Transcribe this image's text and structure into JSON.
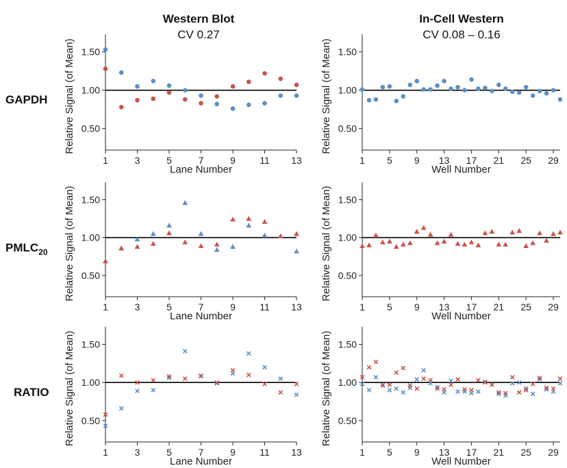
{
  "colors": {
    "blue": "#5b8fc7",
    "red": "#c8554a",
    "axis": "#222222",
    "reference": "#000000"
  },
  "columns": [
    {
      "title": "Western Blot",
      "subtitle": "CV 0.27"
    },
    {
      "title": "In-Cell Western",
      "subtitle": "CV 0.08 – 0.16"
    }
  ],
  "rows": [
    {
      "label": "GAPDH",
      "label_sub": ""
    },
    {
      "label": "PMLC",
      "label_sub": "20"
    },
    {
      "label": "RATIO",
      "label_sub": ""
    }
  ],
  "chart_data": [
    {
      "type": "scatter",
      "row": "GAPDH",
      "column": "Western Blot",
      "marker": "circle",
      "xlabel": "Lane Number",
      "ylabel": "Relative Signal (of Mean)",
      "xlim": [
        1,
        13
      ],
      "ylim": [
        0.22,
        1.73
      ],
      "xticks": [
        1,
        3,
        5,
        7,
        9,
        11,
        13
      ],
      "yticks": [
        0.5,
        1.0,
        1.5
      ],
      "ytick_labels": [
        "0.50",
        "1.00",
        "1.50"
      ],
      "reference_y": 1.0,
      "series": [
        {
          "color": "blue",
          "x": [
            1,
            2,
            3,
            4,
            5,
            6,
            7,
            8,
            9,
            10,
            11,
            12,
            13
          ],
          "y": [
            1.53,
            1.23,
            1.05,
            1.12,
            1.06,
            1.0,
            0.93,
            0.82,
            0.76,
            0.81,
            0.83,
            0.93,
            0.93
          ]
        },
        {
          "color": "red",
          "x": [
            1,
            2,
            3,
            4,
            5,
            6,
            7,
            8,
            9,
            10,
            11,
            12,
            13
          ],
          "y": [
            1.28,
            0.78,
            0.87,
            0.89,
            0.97,
            0.88,
            0.83,
            0.92,
            1.05,
            1.11,
            1.22,
            1.15,
            1.07
          ]
        }
      ]
    },
    {
      "type": "scatter",
      "row": "GAPDH",
      "column": "In-Cell Western",
      "marker": "circle",
      "xlabel": "Well Number",
      "ylabel": "Relative Signal (of Mean)",
      "xlim": [
        1,
        30
      ],
      "ylim": [
        0.22,
        1.73
      ],
      "xticks": [
        1,
        5,
        9,
        13,
        17,
        21,
        25,
        29
      ],
      "yticks": [
        0.5,
        1.0,
        1.5
      ],
      "ytick_labels": [
        "0.50",
        "1.00",
        "1.50"
      ],
      "reference_y": 1.0,
      "series": [
        {
          "color": "blue",
          "x": [
            1,
            2,
            3,
            4,
            5,
            6,
            7,
            8,
            9,
            10,
            11,
            12,
            13,
            14,
            15,
            16,
            17,
            18,
            19,
            20,
            21,
            22,
            23,
            24,
            25,
            26,
            27,
            28,
            29,
            30
          ],
          "y": [
            1.01,
            0.87,
            0.88,
            1.04,
            1.05,
            0.86,
            0.92,
            1.07,
            1.12,
            1.01,
            1.01,
            1.06,
            1.12,
            1.02,
            1.04,
            1.0,
            1.14,
            1.02,
            1.03,
            0.99,
            1.07,
            1.02,
            0.98,
            0.97,
            1.04,
            0.93,
            0.99,
            0.96,
            1.0,
            0.88
          ]
        }
      ]
    },
    {
      "type": "scatter",
      "row": "PMLC20",
      "column": "Western Blot",
      "marker": "triangle",
      "xlabel": "Lane Number",
      "ylabel": "Relative Signal (of Mean)",
      "xlim": [
        1,
        13
      ],
      "ylim": [
        0.22,
        1.73
      ],
      "xticks": [
        1,
        3,
        5,
        7,
        9,
        11,
        13
      ],
      "yticks": [
        0.5,
        1.0,
        1.5
      ],
      "ytick_labels": [
        "0.50",
        "1.00",
        "1.50"
      ],
      "reference_y": 1.0,
      "series": [
        {
          "color": "blue",
          "x": [
            1,
            2,
            3,
            4,
            5,
            6,
            7,
            8,
            9,
            10,
            11,
            12,
            13
          ],
          "y": [
            0.69,
            0.86,
            0.98,
            1.05,
            1.16,
            1.46,
            1.05,
            0.84,
            0.88,
            1.16,
            1.03,
            1.02,
            0.82
          ]
        },
        {
          "color": "red",
          "x": [
            1,
            2,
            3,
            4,
            5,
            6,
            7,
            8,
            9,
            10,
            11,
            12,
            13
          ],
          "y": [
            0.69,
            0.86,
            0.88,
            0.92,
            1.06,
            0.94,
            0.89,
            0.91,
            1.24,
            1.25,
            1.21,
            1.02,
            1.05
          ]
        }
      ]
    },
    {
      "type": "scatter",
      "row": "PMLC20",
      "column": "In-Cell Western",
      "marker": "triangle",
      "xlabel": "Well Number",
      "ylabel": "Relative Signal (of Mean)",
      "xlim": [
        1,
        30
      ],
      "ylim": [
        0.22,
        1.73
      ],
      "xticks": [
        1,
        5,
        9,
        13,
        17,
        21,
        25,
        29
      ],
      "yticks": [
        0.5,
        1.0,
        1.5
      ],
      "ytick_labels": [
        "0.50",
        "1.00",
        "1.50"
      ],
      "reference_y": 1.0,
      "series": [
        {
          "color": "red",
          "x": [
            1,
            2,
            3,
            4,
            5,
            6,
            7,
            8,
            9,
            10,
            11,
            12,
            13,
            14,
            15,
            16,
            17,
            18,
            19,
            20,
            21,
            22,
            23,
            24,
            25,
            26,
            27,
            28,
            29,
            30
          ],
          "y": [
            0.89,
            0.9,
            1.03,
            0.94,
            0.95,
            0.88,
            0.91,
            0.93,
            1.08,
            1.13,
            1.04,
            0.93,
            0.95,
            1.04,
            0.92,
            0.91,
            0.94,
            0.9,
            1.06,
            1.08,
            0.91,
            0.91,
            1.07,
            1.09,
            0.89,
            0.93,
            1.06,
            0.96,
            1.05,
            1.07
          ]
        }
      ]
    },
    {
      "type": "scatter",
      "row": "RATIO",
      "column": "Western Blot",
      "marker": "x",
      "xlabel": "Lane Number",
      "ylabel": "Relative Signal (of Mean)",
      "xlim": [
        1,
        13
      ],
      "ylim": [
        0.22,
        1.73
      ],
      "xticks": [
        1,
        3,
        5,
        7,
        9,
        11,
        13
      ],
      "yticks": [
        0.5,
        1.0,
        1.5
      ],
      "ytick_labels": [
        "0.50",
        "1.00",
        "1.50"
      ],
      "reference_y": 1.0,
      "series": [
        {
          "color": "blue",
          "x": [
            1,
            2,
            3,
            4,
            5,
            6,
            7,
            8,
            9,
            10,
            11,
            12,
            13
          ],
          "y": [
            0.43,
            0.66,
            0.89,
            0.9,
            1.06,
            1.41,
            1.08,
            0.99,
            1.12,
            1.38,
            1.2,
            1.05,
            0.84
          ]
        },
        {
          "color": "red",
          "x": [
            1,
            2,
            3,
            4,
            5,
            6,
            7,
            8,
            9,
            10,
            11,
            12,
            13
          ],
          "y": [
            0.58,
            1.09,
            1.0,
            1.03,
            1.08,
            1.05,
            1.09,
            1.0,
            1.16,
            1.1,
            0.98,
            0.87,
            0.98
          ]
        }
      ]
    },
    {
      "type": "scatter",
      "row": "RATIO",
      "column": "In-Cell Western",
      "marker": "x",
      "xlabel": "Well Number",
      "ylabel": "Relative Signal (of Mean)",
      "xlim": [
        1,
        30
      ],
      "ylim": [
        0.22,
        1.73
      ],
      "xticks": [
        1,
        5,
        9,
        13,
        17,
        21,
        25,
        29
      ],
      "yticks": [
        0.5,
        1.0,
        1.5
      ],
      "ytick_labels": [
        "0.50",
        "1.00",
        "1.50"
      ],
      "reference_y": 1.0,
      "series": [
        {
          "color": "blue",
          "x": [
            1,
            2,
            3,
            4,
            5,
            6,
            7,
            8,
            9,
            10,
            11,
            12,
            13,
            14,
            15,
            16,
            17,
            18,
            19,
            20,
            21,
            22,
            23,
            24,
            25,
            26,
            27,
            28,
            29,
            30
          ],
          "y": [
            0.98,
            0.9,
            1.07,
            0.97,
            0.9,
            0.92,
            0.87,
            0.93,
            1.04,
            1.16,
            0.99,
            0.94,
            0.87,
            1.02,
            0.88,
            0.88,
            0.86,
            0.88,
            1.01,
            0.97,
            0.85,
            0.83,
            0.99,
            1.0,
            0.92,
            0.85,
            1.04,
            0.91,
            0.88,
            0.99
          ]
        },
        {
          "color": "red",
          "x": [
            1,
            2,
            3,
            4,
            5,
            6,
            7,
            8,
            9,
            10,
            11,
            12,
            13,
            14,
            15,
            16,
            17,
            18,
            19,
            20,
            21,
            22,
            23,
            24,
            25,
            26,
            27,
            28,
            29,
            30
          ],
          "y": [
            1.07,
            1.2,
            1.27,
            0.96,
            0.97,
            1.13,
            1.19,
            0.96,
            0.92,
            1.05,
            1.03,
            0.92,
            0.91,
            0.97,
            1.04,
            0.91,
            0.9,
            1.03,
            1.0,
            0.97,
            0.87,
            0.86,
            1.07,
            0.87,
            0.9,
            0.98,
            1.06,
            0.93,
            0.92,
            1.05
          ]
        }
      ]
    }
  ]
}
